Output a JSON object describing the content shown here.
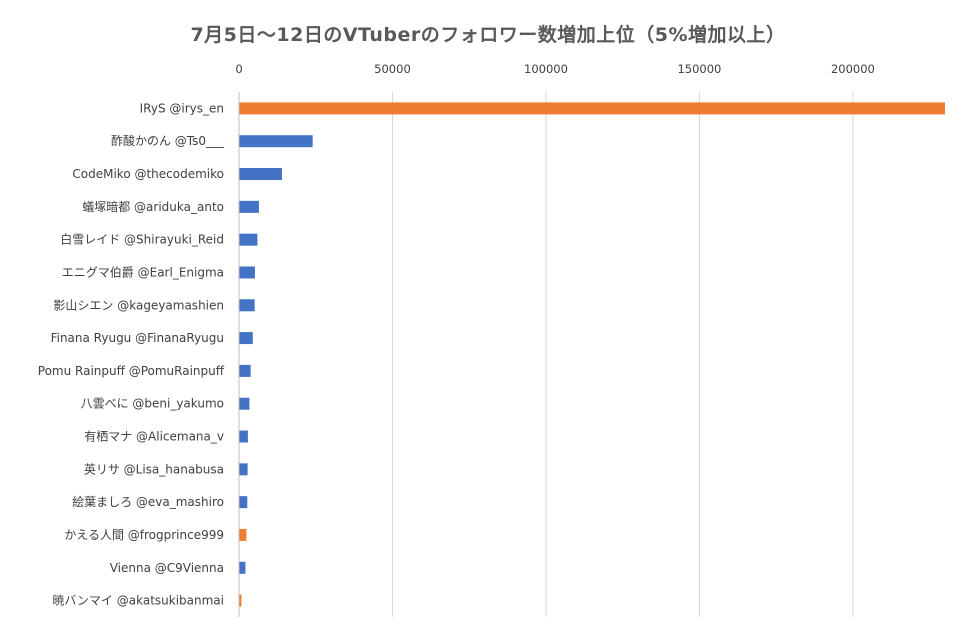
{
  "chart_data": {
    "type": "bar",
    "orientation": "horizontal",
    "title": "7月5日～12日のVTuberのフォロワー数増加上位（5%増加以上）",
    "xlabel": "",
    "ylabel": "",
    "xlim": [
      0,
      230000
    ],
    "x_ticks": [
      0,
      50000,
      100000,
      150000,
      200000
    ],
    "x_tick_labels": [
      "0",
      "50000",
      "100000",
      "150000",
      "200000"
    ],
    "x_axis_position": "top",
    "grid": true,
    "legend": "none",
    "colors": {
      "blue": "#4472c4",
      "orange": "#ed7d31"
    },
    "categories": [
      "IRyS @irys_en",
      "酢酸かのん @Ts0___",
      "CodeMiko @thecodemiko",
      "蟻塚暗都 @ariduka_anto",
      "白雪レイド @Shirayuki_Reid",
      "エニグマ伯爵 @Earl_Enigma",
      "影山シエン @kageyamashien",
      "Finana Ryugu @FinanaRyugu",
      "Pomu Rainpuff @PomuRainpuff",
      "八雲べに @beni_yakumo",
      "有栖マナ @Alicemana_v",
      "英リサ @Lisa_hanabusa",
      "絵葉ましろ @eva_mashiro",
      "かえる人間 @frogprince999",
      "Vienna @C9Vienna",
      "暁バンマイ @akatsukibanmai"
    ],
    "values": [
      231000,
      24000,
      14000,
      6500,
      6000,
      5200,
      5100,
      4500,
      3800,
      3400,
      2900,
      2800,
      2700,
      2400,
      2100,
      800
    ],
    "bar_colors": [
      "orange",
      "blue",
      "blue",
      "blue",
      "blue",
      "blue",
      "blue",
      "blue",
      "blue",
      "blue",
      "blue",
      "blue",
      "blue",
      "orange",
      "blue",
      "orange"
    ]
  }
}
